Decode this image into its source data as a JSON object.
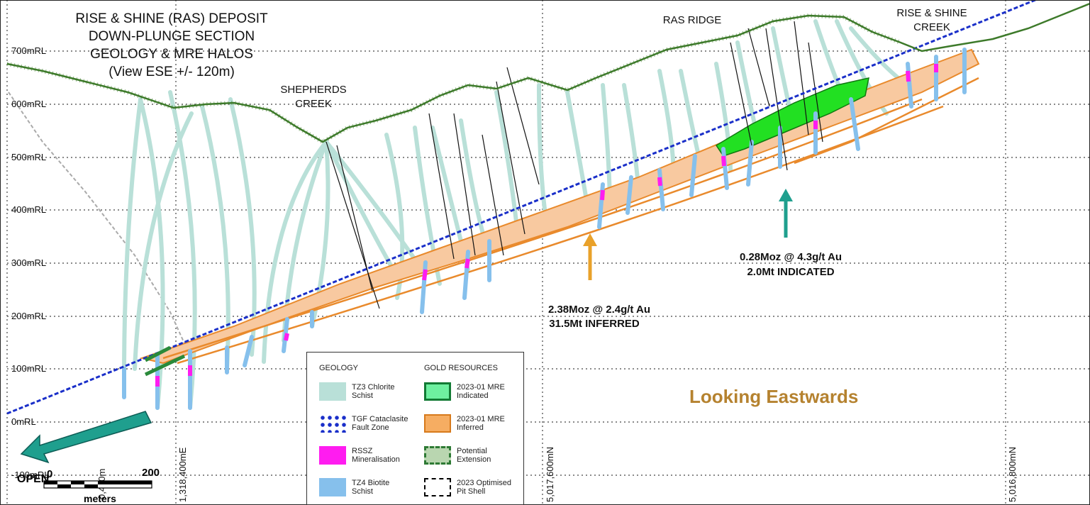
{
  "title_lines": [
    "RISE & SHINE (RAS) DEPOSIT",
    "DOWN-PLUNGE SECTION",
    "GEOLOGY & MRE HALOS",
    "(View ESE +/- 120m)"
  ],
  "features": {
    "shepherds_creek": [
      "SHEPHERDS",
      "CREEK"
    ],
    "ras_ridge": "RAS RIDGE",
    "rise_shine_creek": [
      "RISE & SHINE",
      "CREEK"
    ]
  },
  "rl_labels": [
    "700mRL",
    "600mRL",
    "500mRL",
    "400mRL",
    "300mRL",
    "200mRL",
    "100mRL",
    "0mRL",
    "-100mRL"
  ],
  "northing_labels": [
    "1,318,400mE",
    "5,017,600mN",
    "5,016,800mN"
  ],
  "left_partial_label": "0,400m",
  "annotations": {
    "inferred": [
      "2.38Moz @ 2.4g/t Au",
      "31.5Mt INFERRED"
    ],
    "indicated": [
      "0.28Moz @ 4.3g/t Au",
      "2.0Mt INDICATED"
    ],
    "open": "OPEN"
  },
  "scale_bar": {
    "start": "0",
    "end": "200",
    "unit": "meters"
  },
  "looking": "Looking Eastwards",
  "legend": {
    "geology_heading": "GEOLOGY",
    "resources_heading": "GOLD RESOURCES",
    "geology": [
      {
        "label": "TZ3 Chlorite\nSchist",
        "color": "#b9e0d8"
      },
      {
        "label": "TGF Cataclasite\nFault Zone",
        "color": "#1a2fc9"
      },
      {
        "label": "RSSZ\nMineralisation",
        "color": "#ff1cf0"
      },
      {
        "label": "TZ4 Biotite\nSchist",
        "color": "#86c0ec"
      }
    ],
    "resources": [
      {
        "label": "2023-01 MRE\nIndicated",
        "color": "#6ef0a0"
      },
      {
        "label": "2023-01 MRE\nInferred",
        "color": "#f6ad62"
      },
      {
        "label": "Potential\nExtension",
        "color": "#b9d6b0"
      },
      {
        "label": "2023 Optimised\nPit Shell",
        "color": "#000000"
      }
    ]
  },
  "colors": {
    "chlorite": "#b9e0d8",
    "biotite": "#86c0ec",
    "rssz": "#ff1cf0",
    "fault": "#1a2fc9",
    "indicated": "#22e022",
    "inferred_fill": "#f8c9a0",
    "inferred_line": "#e98a2c",
    "topo": "#3d7a2a",
    "teal_arrow": "#1f9f8e",
    "gold_arrow": "#e9a12a",
    "looking": "#b5822f"
  }
}
